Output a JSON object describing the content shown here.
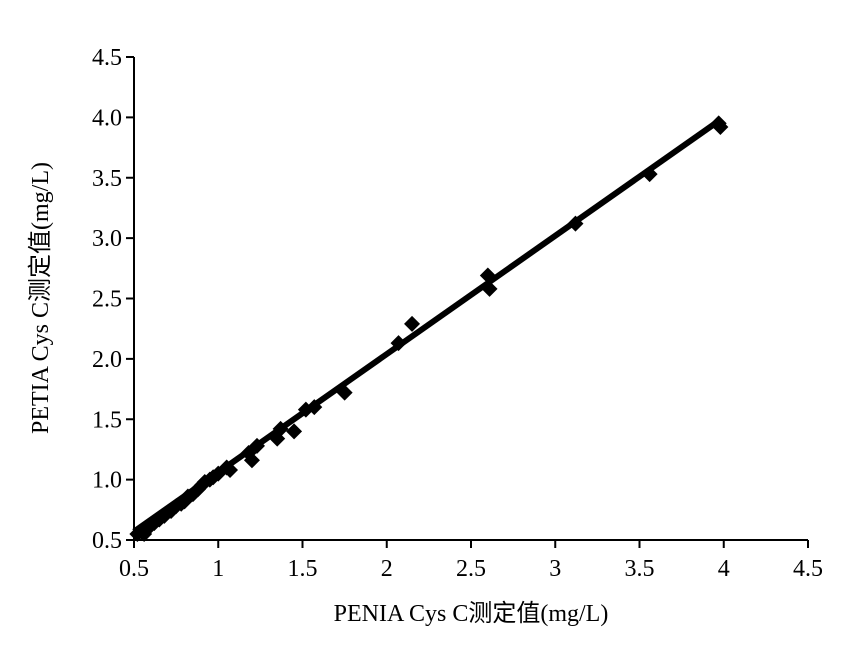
{
  "chart_data": {
    "type": "scatter",
    "xlabel": "PENIA Cys C测定值(mg/L)",
    "ylabel": "PETIA Cys C测定值(mg/L)",
    "xlim": [
      0.5,
      4.5
    ],
    "ylim": [
      0.5,
      4.5
    ],
    "x_ticks": [
      "0.5",
      "1",
      "1.5",
      "2",
      "2.5",
      "3",
      "3.5",
      "4",
      "4.5"
    ],
    "y_ticks": [
      "0.5",
      "1.0",
      "1.5",
      "2.0",
      "2.5",
      "3.0",
      "3.5",
      "4.0",
      "4.5"
    ],
    "grid": false,
    "legend": "none",
    "marker": "diamond",
    "colors": {
      "marker": "#000000",
      "line": "#000000",
      "axis": "#000000"
    },
    "points": [
      {
        "x": 0.52,
        "y": 0.55
      },
      {
        "x": 0.55,
        "y": 0.58
      },
      {
        "x": 0.56,
        "y": 0.55
      },
      {
        "x": 0.58,
        "y": 0.6
      },
      {
        "x": 0.6,
        "y": 0.62
      },
      {
        "x": 0.62,
        "y": 0.64
      },
      {
        "x": 0.65,
        "y": 0.67
      },
      {
        "x": 0.68,
        "y": 0.7
      },
      {
        "x": 0.72,
        "y": 0.74
      },
      {
        "x": 0.75,
        "y": 0.78
      },
      {
        "x": 0.78,
        "y": 0.8
      },
      {
        "x": 0.8,
        "y": 0.82
      },
      {
        "x": 0.82,
        "y": 0.86
      },
      {
        "x": 0.85,
        "y": 0.88
      },
      {
        "x": 0.88,
        "y": 0.92
      },
      {
        "x": 0.9,
        "y": 0.95
      },
      {
        "x": 0.92,
        "y": 0.98
      },
      {
        "x": 0.95,
        "y": 1.0
      },
      {
        "x": 0.97,
        "y": 1.02
      },
      {
        "x": 1.0,
        "y": 1.05
      },
      {
        "x": 1.05,
        "y": 1.1
      },
      {
        "x": 1.07,
        "y": 1.08
      },
      {
        "x": 1.18,
        "y": 1.22
      },
      {
        "x": 1.2,
        "y": 1.16
      },
      {
        "x": 1.23,
        "y": 1.28
      },
      {
        "x": 1.35,
        "y": 1.34
      },
      {
        "x": 1.37,
        "y": 1.42
      },
      {
        "x": 1.45,
        "y": 1.4
      },
      {
        "x": 1.52,
        "y": 1.58
      },
      {
        "x": 1.57,
        "y": 1.6
      },
      {
        "x": 1.75,
        "y": 1.72
      },
      {
        "x": 2.07,
        "y": 2.13
      },
      {
        "x": 2.15,
        "y": 2.29
      },
      {
        "x": 2.6,
        "y": 2.69
      },
      {
        "x": 2.61,
        "y": 2.58
      },
      {
        "x": 3.12,
        "y": 3.12
      },
      {
        "x": 3.56,
        "y": 3.53
      },
      {
        "x": 3.97,
        "y": 3.95
      },
      {
        "x": 3.98,
        "y": 3.92
      }
    ],
    "fit_line": {
      "x": [
        0.5,
        3.97
      ],
      "y": [
        0.57,
        3.97
      ]
    }
  }
}
